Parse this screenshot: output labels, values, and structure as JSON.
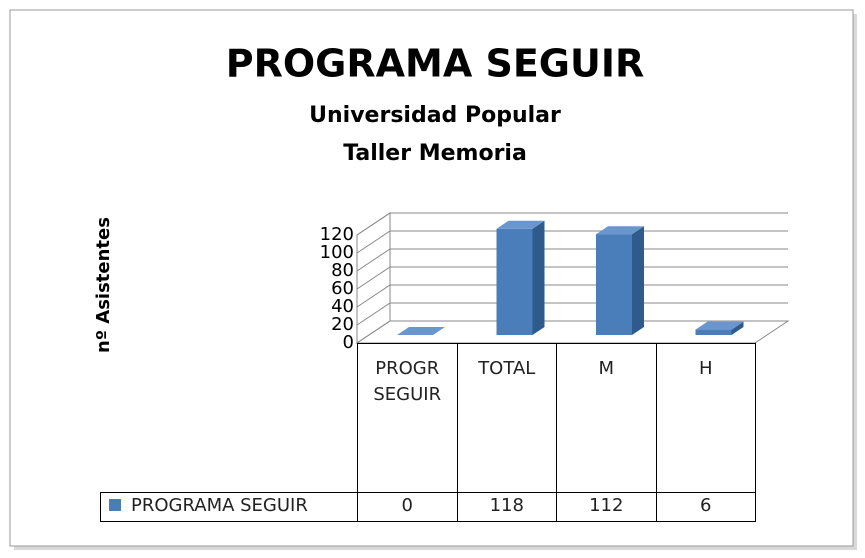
{
  "chart_data": {
    "type": "bar3d",
    "title": "PROGRAMA SEGUIR",
    "subtitle": [
      "Universidad Popular",
      "Taller Memoria"
    ],
    "ylabel": "nº Asistentes",
    "categories": [
      "PROGR SEGUIR",
      "TOTAL",
      "M",
      "H"
    ],
    "series": [
      {
        "name": "PROGRAMA SEGUIR",
        "color": "#4a7ebb",
        "values": [
          0,
          118,
          112,
          6
        ]
      }
    ],
    "ylim": [
      0,
      120
    ],
    "yticks": [
      0,
      20,
      40,
      60,
      80,
      100,
      120
    ],
    "grid": true,
    "data_table": true
  }
}
